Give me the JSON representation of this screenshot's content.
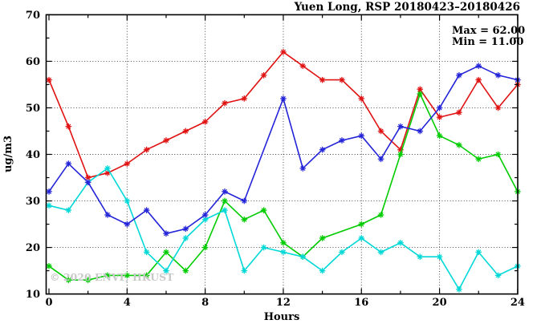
{
  "watermark": "© 2020 ENVF, HKUST",
  "chart_data": {
    "type": "line",
    "title": "Yuen Long, RSP 20180423–20180426",
    "xlabel": "Hours",
    "ylabel": "ug/m3",
    "xlim": [
      0,
      24
    ],
    "ylim": [
      10,
      70
    ],
    "x_major_ticks": [
      0,
      4,
      8,
      12,
      16,
      20,
      24
    ],
    "x_minor_step": 2,
    "y_major_ticks": [
      10,
      20,
      30,
      40,
      50,
      60,
      70
    ],
    "y_minor_step": 5,
    "grid": true,
    "legend": "none",
    "annotations": {
      "max": "Max = 62.00",
      "min": "Min = 11.00"
    },
    "max_value": 62.0,
    "min_value": 11.0,
    "x": [
      0,
      1,
      2,
      3,
      4,
      5,
      6,
      7,
      8,
      9,
      10,
      11,
      12,
      13,
      14,
      15,
      16,
      17,
      18,
      19,
      20,
      21,
      22,
      23,
      24
    ],
    "series": [
      {
        "name": "red",
        "color": "#e01212",
        "values": [
          56,
          46,
          35,
          36,
          38,
          41,
          43,
          45,
          47,
          51,
          52,
          57,
          62,
          59,
          56,
          56,
          52,
          45,
          41,
          54,
          48,
          49,
          56,
          50,
          55
        ]
      },
      {
        "name": "green",
        "color": "#00cc00",
        "values": [
          16,
          13,
          13,
          14,
          14,
          14,
          19,
          15,
          20,
          30,
          26,
          28,
          21,
          18,
          22,
          null,
          25,
          27,
          40,
          53,
          44,
          42,
          39,
          40,
          32
        ]
      },
      {
        "name": "cyan",
        "color": "#00d8d8",
        "values": [
          29,
          28,
          34,
          37,
          30,
          19,
          15,
          22,
          26,
          28,
          15,
          20,
          19,
          18,
          15,
          19,
          22,
          19,
          21,
          18,
          18,
          11,
          19,
          14,
          16
        ]
      },
      {
        "name": "blue",
        "color": "#2424d8",
        "values": [
          32,
          38,
          34,
          27,
          25,
          28,
          23,
          24,
          27,
          32,
          30,
          null,
          52,
          37,
          41,
          43,
          44,
          39,
          46,
          45,
          50,
          57,
          59,
          57,
          56
        ]
      }
    ]
  }
}
